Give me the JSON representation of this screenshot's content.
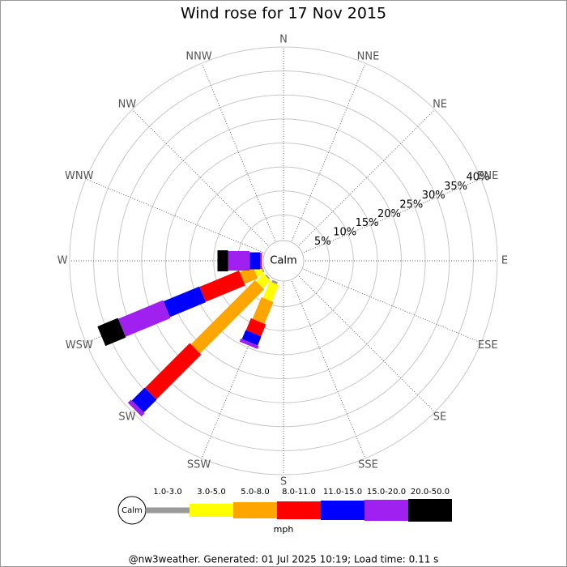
{
  "chart_data": {
    "type": "windrose",
    "title": "Wind rose for 17 Nov 2015",
    "directions": [
      "N",
      "NNE",
      "NE",
      "ENE",
      "E",
      "ESE",
      "SE",
      "SSE",
      "S",
      "SSW",
      "SW",
      "WSW",
      "W",
      "WNW",
      "NW",
      "NNW"
    ],
    "rlim": [
      0,
      40
    ],
    "rticks": [
      {
        "value": 5,
        "label": "5%"
      },
      {
        "value": 10,
        "label": "10%"
      },
      {
        "value": 15,
        "label": "15%"
      },
      {
        "value": 20,
        "label": "20%"
      },
      {
        "value": 25,
        "label": "25%"
      },
      {
        "value": 30,
        "label": "30%"
      },
      {
        "value": 35,
        "label": "35%"
      },
      {
        "value": 40,
        "label": "40%"
      }
    ],
    "calm_label": "Calm",
    "unit": "mph",
    "series": [
      {
        "name": "1.0-3.0",
        "color": "#999999",
        "values": [
          0,
          0,
          0,
          0,
          0,
          0,
          0,
          0,
          0,
          0.5,
          0.3,
          0.3,
          0,
          0,
          0,
          0
        ]
      },
      {
        "name": "3.0-5.0",
        "color": "#ffff00",
        "values": [
          0,
          0,
          0,
          0,
          0,
          0,
          0,
          0,
          0,
          3.7,
          2.2,
          1.5,
          0,
          0,
          0,
          0
        ]
      },
      {
        "name": "5.0-8.0",
        "color": "#ffa500",
        "values": [
          0,
          0,
          0,
          0,
          0,
          0,
          0,
          0,
          0,
          4.9,
          18.9,
          3.0,
          0,
          0,
          0,
          0
        ]
      },
      {
        "name": "8.0-11.0",
        "color": "#ff0000",
        "values": [
          0,
          0,
          0,
          0,
          0,
          0,
          0,
          0,
          0,
          2.7,
          13.2,
          8.9,
          0.3,
          0,
          0,
          0
        ]
      },
      {
        "name": "11.0-15.0",
        "color": "#0000ff",
        "values": [
          0,
          0,
          0,
          0,
          0,
          0,
          0,
          0,
          0,
          2.0,
          3.8,
          8.1,
          2.2,
          0,
          0,
          0
        ]
      },
      {
        "name": "15.0-20.0",
        "color": "#a020f0",
        "values": [
          0,
          0,
          0,
          0,
          0,
          0,
          0,
          0,
          0,
          0.7,
          0.9,
          10.1,
          4.5,
          0,
          0,
          0
        ]
      },
      {
        "name": "20.0-50.0",
        "color": "#000000",
        "values": [
          0,
          0,
          0,
          0,
          0,
          0,
          0,
          0,
          0,
          0,
          0,
          4.6,
          2.2,
          0,
          0,
          0
        ]
      }
    ],
    "footer": "@nw3weather. Generated: 01 Jul 2025 10:19; Load time: 0.11 s"
  }
}
